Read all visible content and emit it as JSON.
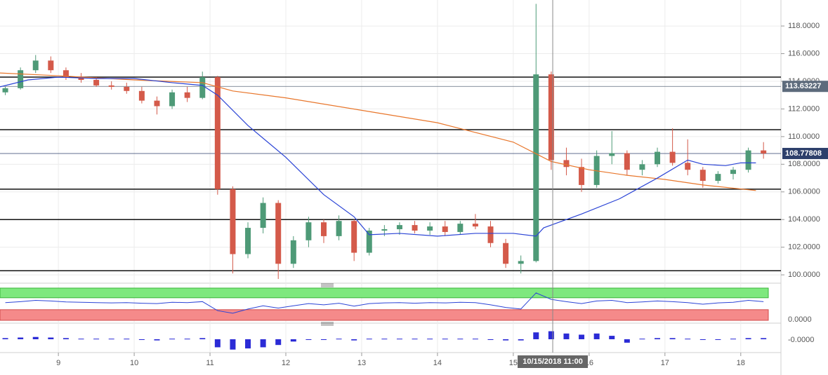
{
  "chart_data": {
    "type": "candlestick",
    "xlim": [
      8.23,
      18.53
    ],
    "xticks": [
      9,
      10,
      11,
      12,
      13,
      14,
      15,
      16,
      17,
      18
    ],
    "ylim": [
      99.6,
      119.88
    ],
    "yticks": [
      {
        "value": 100,
        "label": "100.0000"
      },
      {
        "value": 102,
        "label": "102.0000"
      },
      {
        "value": 104,
        "label": "104.0000"
      },
      {
        "value": 106,
        "label": "106.0000"
      },
      {
        "value": 108,
        "label": "108.0000"
      },
      {
        "value": 110,
        "label": "110.0000"
      },
      {
        "value": 112,
        "label": "112.0000"
      },
      {
        "value": 114,
        "label": "114.0000"
      },
      {
        "value": 116,
        "label": "116.0000"
      },
      {
        "value": 118,
        "label": "118.0000"
      }
    ],
    "grid": true,
    "up_color": "#4e9a77",
    "down_color": "#d45a4a",
    "x": [
      8.3,
      8.5,
      8.7,
      8.9,
      9.1,
      9.3,
      9.5,
      9.7,
      9.9,
      10.1,
      10.3,
      10.5,
      10.7,
      10.9,
      11.1,
      11.3,
      11.5,
      11.7,
      11.9,
      12.1,
      12.3,
      12.5,
      12.7,
      12.9,
      13.1,
      13.3,
      13.5,
      13.7,
      13.9,
      14.1,
      14.3,
      14.5,
      14.7,
      14.9,
      15.1,
      15.3,
      15.5,
      15.7,
      15.9,
      16.1,
      16.3,
      16.5,
      16.7,
      16.9,
      17.1,
      17.3,
      17.5,
      17.7,
      17.9,
      18.1,
      18.3
    ],
    "candles": [
      [
        113.2,
        113.6,
        113.0,
        113.5
      ],
      [
        113.5,
        115.0,
        113.4,
        114.8
      ],
      [
        114.8,
        115.9,
        114.6,
        115.5
      ],
      [
        115.5,
        115.8,
        114.6,
        114.8
      ],
      [
        114.8,
        115.0,
        114.1,
        114.3
      ],
      [
        114.3,
        114.6,
        113.9,
        114.1
      ],
      [
        114.1,
        114.3,
        113.6,
        113.7
      ],
      [
        113.7,
        114.0,
        113.4,
        113.6
      ],
      [
        113.6,
        113.9,
        113.1,
        113.3
      ],
      [
        113.3,
        113.6,
        112.4,
        112.6
      ],
      [
        112.6,
        112.9,
        111.6,
        112.2
      ],
      [
        112.2,
        113.4,
        112.0,
        113.2
      ],
      [
        113.2,
        113.6,
        112.5,
        112.8
      ],
      [
        112.8,
        114.7,
        112.7,
        114.3
      ],
      [
        114.3,
        114.4,
        105.8,
        106.2
      ],
      [
        106.2,
        106.4,
        100.1,
        101.5
      ],
      [
        101.5,
        103.8,
        101.2,
        103.4
      ],
      [
        103.4,
        105.6,
        103.0,
        105.2
      ],
      [
        105.2,
        105.4,
        99.7,
        100.8
      ],
      [
        100.8,
        102.8,
        100.5,
        102.5
      ],
      [
        102.5,
        104.2,
        102.0,
        103.8
      ],
      [
        103.8,
        104.0,
        102.3,
        102.8
      ],
      [
        102.8,
        104.3,
        102.5,
        103.9
      ],
      [
        103.9,
        104.0,
        101.0,
        101.6
      ],
      [
        101.6,
        103.4,
        101.4,
        103.2
      ],
      [
        103.2,
        103.6,
        102.8,
        103.3
      ],
      [
        103.3,
        103.8,
        102.9,
        103.6
      ],
      [
        103.6,
        103.9,
        103.0,
        103.2
      ],
      [
        103.2,
        103.8,
        102.9,
        103.5
      ],
      [
        103.5,
        103.9,
        102.8,
        103.1
      ],
      [
        103.1,
        103.9,
        102.9,
        103.7
      ],
      [
        103.7,
        104.4,
        103.3,
        103.5
      ],
      [
        103.5,
        103.9,
        102.0,
        102.3
      ],
      [
        102.3,
        102.6,
        100.5,
        100.8
      ],
      [
        100.8,
        101.4,
        100.1,
        101.0
      ],
      [
        101.0,
        119.6,
        100.9,
        114.5
      ],
      [
        114.5,
        114.7,
        107.6,
        108.3
      ],
      [
        108.3,
        109.2,
        107.2,
        107.8
      ],
      [
        107.8,
        108.4,
        106.0,
        106.5
      ],
      [
        106.5,
        109.0,
        106.3,
        108.6
      ],
      [
        108.6,
        110.4,
        108.0,
        108.8
      ],
      [
        108.8,
        109.0,
        107.2,
        107.6
      ],
      [
        107.6,
        108.3,
        107.2,
        108.0
      ],
      [
        108.0,
        109.2,
        107.8,
        108.9
      ],
      [
        108.9,
        110.6,
        107.9,
        108.1
      ],
      [
        108.1,
        109.8,
        107.2,
        107.6
      ],
      [
        107.6,
        107.8,
        106.3,
        106.8
      ],
      [
        106.8,
        107.5,
        106.6,
        107.3
      ],
      [
        107.3,
        107.8,
        106.9,
        107.6
      ],
      [
        107.6,
        109.2,
        107.4,
        109.0
      ],
      [
        109.0,
        109.6,
        108.4,
        108.78
      ]
    ],
    "series": [
      {
        "color": "#e8762b",
        "x": [
          8.23,
          9,
          10,
          10.9,
          11.3,
          12,
          13,
          14,
          15,
          15.5,
          16,
          16.5,
          17,
          17.5,
          18.2
        ],
        "values": [
          114.6,
          114.4,
          114.1,
          113.9,
          113.3,
          112.8,
          111.9,
          111.0,
          109.6,
          108.2,
          107.6,
          107.2,
          106.9,
          106.5,
          106.1
        ]
      },
      {
        "color": "#2b44d6",
        "x": [
          8.23,
          8.6,
          9,
          9.5,
          10,
          10.5,
          10.9,
          11.1,
          11.5,
          12,
          12.5,
          12.9,
          13.1,
          13.5,
          14,
          14.5,
          15,
          15.3,
          15.4,
          15.9,
          16.4,
          16.9,
          17.3,
          17.5,
          17.8,
          18.0,
          18.2
        ],
        "values": [
          113.6,
          114.1,
          114.3,
          114.2,
          114.2,
          113.9,
          113.7,
          113.0,
          110.8,
          108.5,
          105.8,
          104.2,
          102.9,
          103.0,
          102.8,
          103.0,
          103.0,
          102.8,
          103.4,
          104.4,
          105.5,
          107.0,
          108.3,
          108.0,
          107.9,
          108.1,
          108.1
        ]
      }
    ],
    "levels": [
      114.3,
      110.5,
      106.2,
      104.0,
      100.3
    ],
    "level_color": "#111111",
    "price_markers": [
      {
        "value": 113.63227,
        "color": "#5d6b7c"
      },
      {
        "value": 108.77808,
        "color": "#2d3f6b"
      }
    ],
    "crosshair": {
      "x": 15.52,
      "label": "10/15/2018 11:00"
    },
    "oscillator": {
      "ylim": [
        0,
        100
      ],
      "upper_zone": [
        70,
        100
      ],
      "lower_zone": [
        0,
        33
      ],
      "tick_label": "0.0000",
      "color": "#2b44d6",
      "values": [
        55,
        58,
        62,
        60,
        57,
        56,
        55,
        54,
        55,
        53,
        52,
        56,
        55,
        58,
        30,
        22,
        35,
        45,
        38,
        45,
        52,
        48,
        53,
        44,
        52,
        54,
        55,
        53,
        55,
        54,
        56,
        55,
        48,
        40,
        35,
        85,
        65,
        58,
        52,
        60,
        62,
        55,
        57,
        60,
        58,
        55,
        50,
        54,
        56,
        62,
        58
      ]
    },
    "histogram": {
      "ylim": [
        -1.1,
        1.1
      ],
      "tick_label": "-0.0000",
      "color": "#2b2bd6",
      "values": [
        0.1,
        0.15,
        0.2,
        0.15,
        0.1,
        0.05,
        0.05,
        0.05,
        0.05,
        -0.05,
        -0.1,
        0.05,
        0.05,
        0.1,
        -0.7,
        -0.9,
        -0.8,
        -0.7,
        -0.5,
        -0.2,
        -0.05,
        -0.05,
        0.05,
        -0.1,
        0.05,
        0.05,
        0.05,
        0.05,
        0.05,
        0.05,
        0.05,
        0.05,
        -0.05,
        -0.1,
        -0.1,
        0.6,
        0.7,
        0.5,
        0.4,
        0.5,
        0.3,
        -0.3,
        0.05,
        0.1,
        0.1,
        0.05,
        -0.05,
        -0.05,
        0.05,
        0.1,
        0.1
      ]
    }
  }
}
